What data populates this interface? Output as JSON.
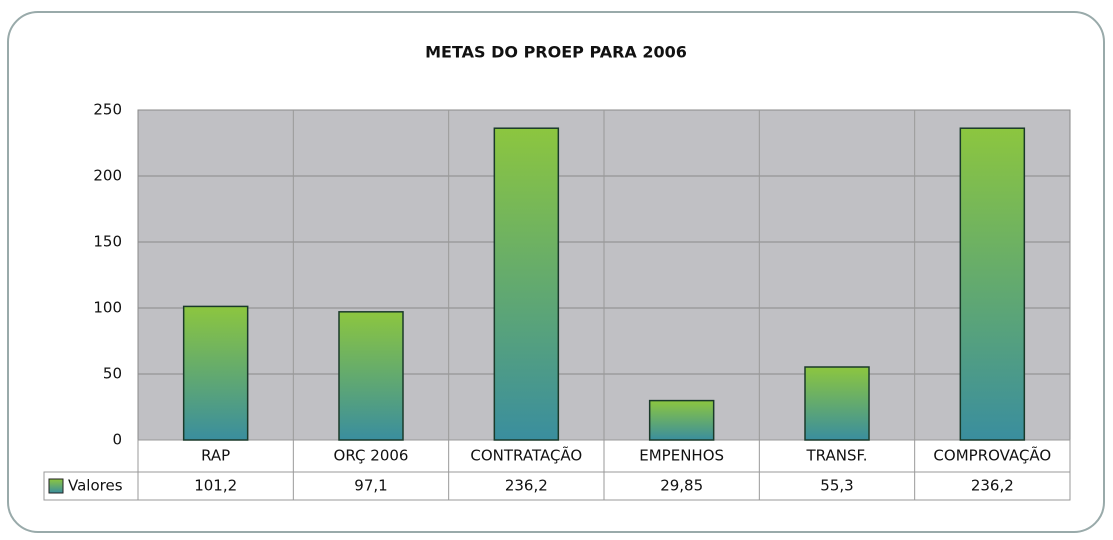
{
  "chart_data": {
    "type": "bar",
    "title": "METAS DO PROEP PARA 2006",
    "categories": [
      "RAP",
      "ORÇ 2006",
      "CONTRATAÇÃO",
      "EMPENHOS",
      "TRANSF.",
      "COMPROVAÇÃO"
    ],
    "series": [
      {
        "name": "Valores",
        "color": "#8cc63f",
        "gradient": [
          "#8cc63f",
          "#3a8e9e"
        ],
        "values": [
          101.2,
          97.1,
          236.2,
          29.85,
          55.3,
          236.2
        ],
        "value_labels": [
          "101,2",
          "97,1",
          "236,2",
          "29,85",
          "55,3",
          "236,2"
        ]
      }
    ],
    "ylim": [
      0,
      250
    ],
    "yticks": [
      0,
      50,
      100,
      150,
      200,
      250
    ],
    "grid": true
  }
}
